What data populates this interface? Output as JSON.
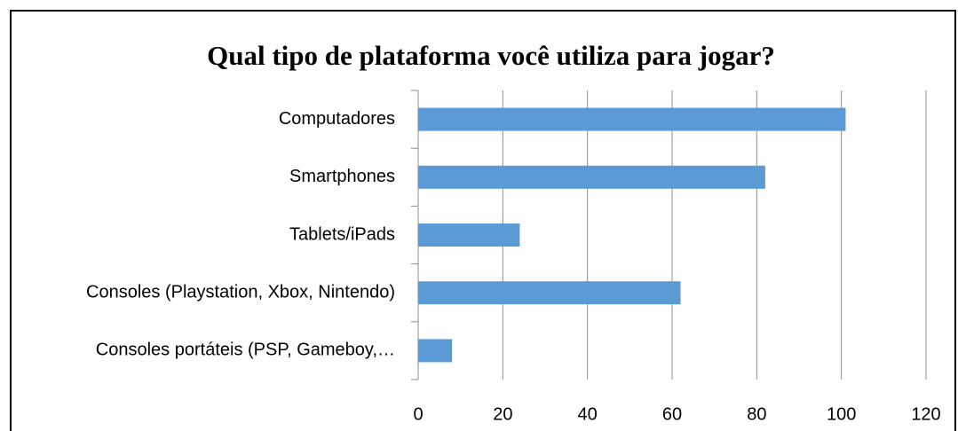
{
  "chart_data": {
    "type": "bar",
    "orientation": "horizontal",
    "title": "Qual tipo de plataforma você utiliza para jogar?",
    "categories": [
      "Computadores",
      "Smartphones",
      "Tablets/iPads",
      "Consoles (Playstation, Xbox, Nintendo)",
      "Consoles portáteis (PSP, Gameboy,…"
    ],
    "values": [
      101,
      82,
      24,
      62,
      8
    ],
    "color": "#5b9bd5",
    "xlim": [
      0,
      120
    ],
    "xticks": [
      0,
      20,
      40,
      60,
      80,
      100,
      120
    ],
    "grid": true
  }
}
